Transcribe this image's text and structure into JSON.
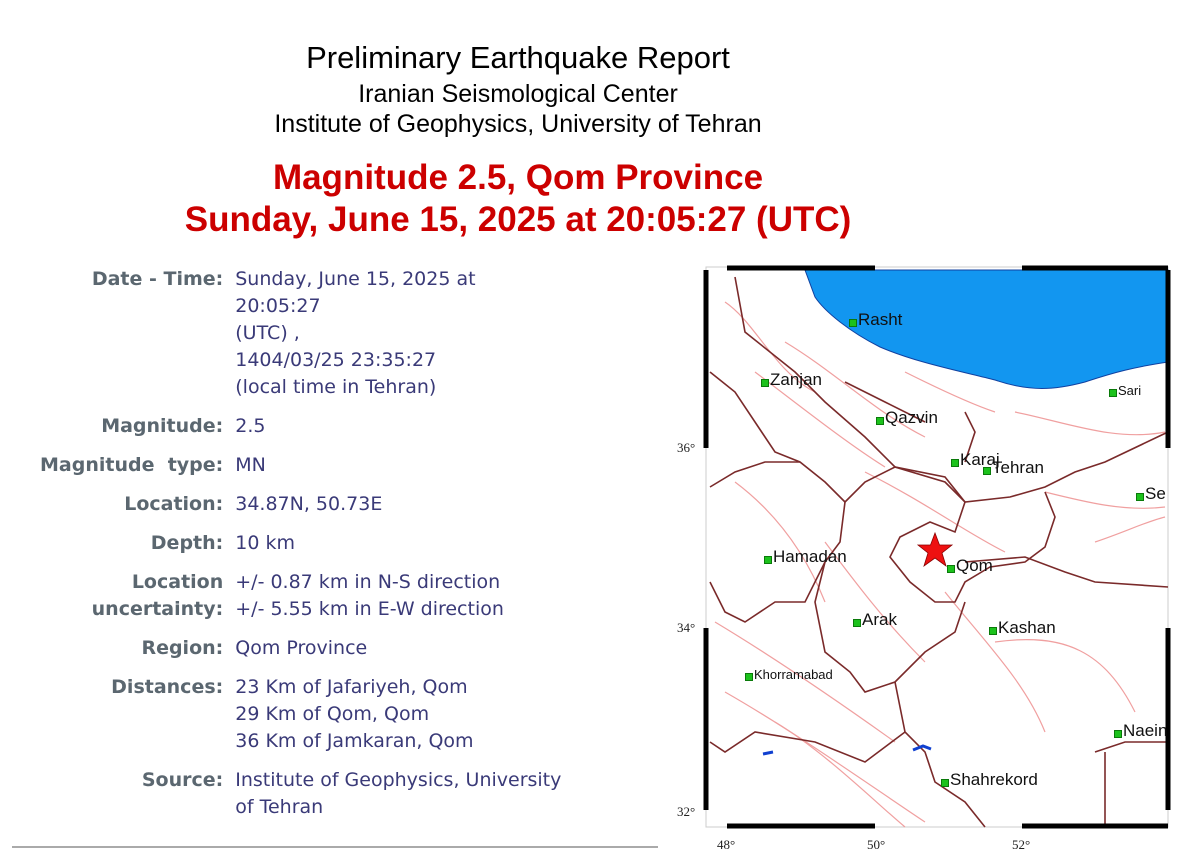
{
  "header": {
    "title": "Preliminary Earthquake Report",
    "org": "Iranian Seismological Center",
    "institute": "Institute of Geophysics, University of Tehran"
  },
  "headline": {
    "line1": "Magnitude 2.5, Qom Province",
    "line2": "Sunday, June 15, 2025 at 20:05:27 (UTC)"
  },
  "details": {
    "datetime": {
      "label": "Date - Time:",
      "lines": [
        "Sunday, June 15, 2025 at",
        "20:05:27",
        "(UTC) ,",
        "1404/03/25 23:35:27",
        "(local time in Tehran)"
      ]
    },
    "magnitude": {
      "label": "Magnitude:",
      "value": "2.5"
    },
    "magnitude_type": {
      "label": "Magnitude  type:",
      "value": "MN"
    },
    "location": {
      "label": "Location:",
      "value": "34.87N, 50.73E"
    },
    "depth": {
      "label": "Depth:",
      "value": "10 km"
    },
    "uncertainty": {
      "label_1": "Location",
      "label_2": "uncertainty:",
      "lines": [
        "+/- 0.87 km in N-S direction",
        "+/- 5.55 km in E-W direction"
      ]
    },
    "region": {
      "label": "Region:",
      "value": "Qom Province"
    },
    "distances": {
      "label": "Distances:",
      "lines": [
        "23 Km of Jafariyeh, Qom",
        "29 Km of Qom, Qom",
        "36 Km of Jamkaran, Qom"
      ]
    },
    "source": {
      "label": "Source:",
      "lines": [
        "Institute of Geophysics, University",
        "of Tehran"
      ]
    }
  },
  "map": {
    "cities": [
      "Rasht",
      "Zanjan",
      "Qazvin",
      "Karaj",
      "Tehran",
      "Sari",
      "Se",
      "Hamadan",
      "Qom",
      "Arak",
      "Kashan",
      "Khorramabad",
      "Naein",
      "Shahrekord"
    ],
    "lat_ticks": [
      "36°",
      "34°",
      "32°"
    ],
    "lon_ticks": [
      "48°",
      "50°",
      "52°"
    ],
    "epicenter_icon": "red-star-icon",
    "colors": {
      "sea": "#1296f0",
      "borders": "#7a2a2a",
      "faults": "#f0a0a0",
      "epicenter": "#ee1111",
      "city": "#1cc21c"
    }
  }
}
